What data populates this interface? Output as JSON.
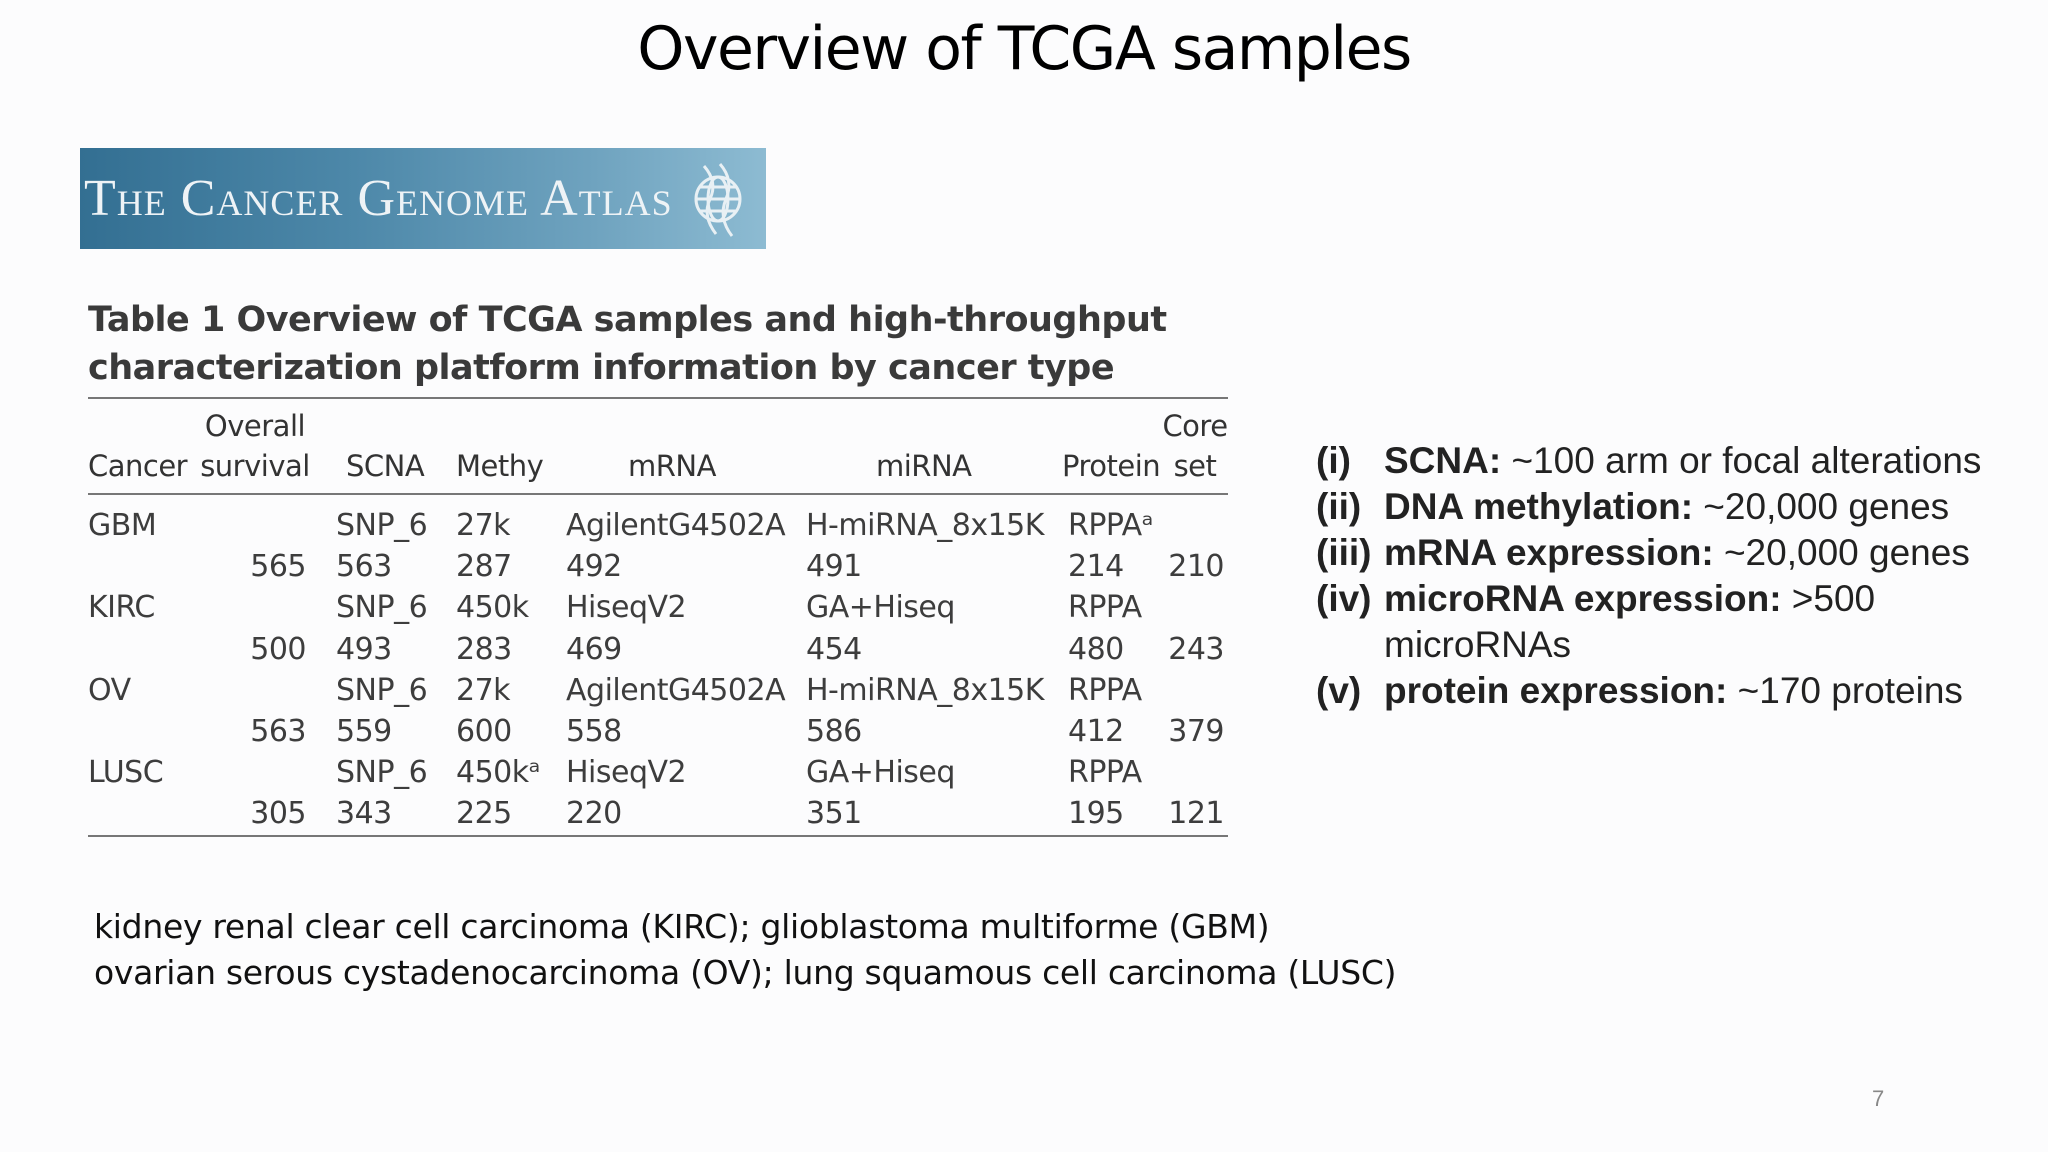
{
  "slide": {
    "title": "Overview of TCGA samples",
    "page_number": "7"
  },
  "banner": {
    "text": "The Cancer Genome Atlas",
    "icon": "globe-logo-icon",
    "color": "#4d88a9"
  },
  "table": {
    "caption": "Table 1  Overview of TCGA samples and high-throughput\ncharacterization platform information by cancer type",
    "headers": {
      "cancer": "Cancer",
      "survival_top": "Overall",
      "survival_bottom": "survival",
      "scna": "SCNA",
      "methy": "Methy",
      "mrna": "mRNA",
      "mirna": "miRNA",
      "protein": "Protein",
      "core_top": "Core",
      "core_bottom": "set"
    },
    "rows": [
      {
        "cancer": "GBM",
        "survival": "",
        "scna": "SNP_6",
        "methy": "27k",
        "mrna": "AgilentG4502A",
        "mirna": "H-miRNA_8x15K",
        "protein": "RPPAᵃ",
        "core": ""
      },
      {
        "cancer": "",
        "survival": "565",
        "scna": "563",
        "methy": "287",
        "mrna": "492",
        "mirna": "491",
        "protein": "214",
        "core": "210"
      },
      {
        "cancer": "KIRC",
        "survival": "",
        "scna": "SNP_6",
        "methy": "450k",
        "mrna": "HiseqV2",
        "mirna": "GA+Hiseq",
        "protein": "RPPA",
        "core": ""
      },
      {
        "cancer": "",
        "survival": "500",
        "scna": "493",
        "methy": "283",
        "mrna": "469",
        "mirna": "454",
        "protein": "480",
        "core": "243"
      },
      {
        "cancer": "OV",
        "survival": "",
        "scna": "SNP_6",
        "methy": "27k",
        "mrna": "AgilentG4502A",
        "mirna": "H-miRNA_8x15K",
        "protein": "RPPA",
        "core": ""
      },
      {
        "cancer": "",
        "survival": "563",
        "scna": "559",
        "methy": "600",
        "mrna": "558",
        "mirna": "586",
        "protein": "412",
        "core": "379"
      },
      {
        "cancer": "LUSC",
        "survival": "",
        "scna": "SNP_6",
        "methy": "450kᵃ",
        "mrna": "HiseqV2",
        "mirna": "GA+Hiseq",
        "protein": "RPPA",
        "core": ""
      },
      {
        "cancer": "",
        "survival": "305",
        "scna": "343",
        "methy": "225",
        "mrna": "220",
        "mirna": "351",
        "protein": "195",
        "core": "121"
      }
    ]
  },
  "list": [
    {
      "num": "(i)",
      "term": "SCNA:",
      "text": " ~100 arm or focal alterations"
    },
    {
      "num": "(ii)",
      "term": " DNA methylation:",
      "text": " ~20,000 genes"
    },
    {
      "num": "(iii)",
      "term": "mRNA expression:",
      "text": " ~20,000 genes"
    },
    {
      "num": "(iv)",
      "term": "microRNA expression:",
      "text": " >500 microRNAs"
    },
    {
      "num": "(v)",
      "term": " protein expression:",
      "text": " ~170 proteins"
    }
  ],
  "notes": [
    "kidney renal clear cell carcinoma (KIRC);  glioblastoma multiforme (GBM)",
    "ovarian serous cystadenocarcinoma (OV); lung squamous cell carcinoma (LUSC)"
  ]
}
